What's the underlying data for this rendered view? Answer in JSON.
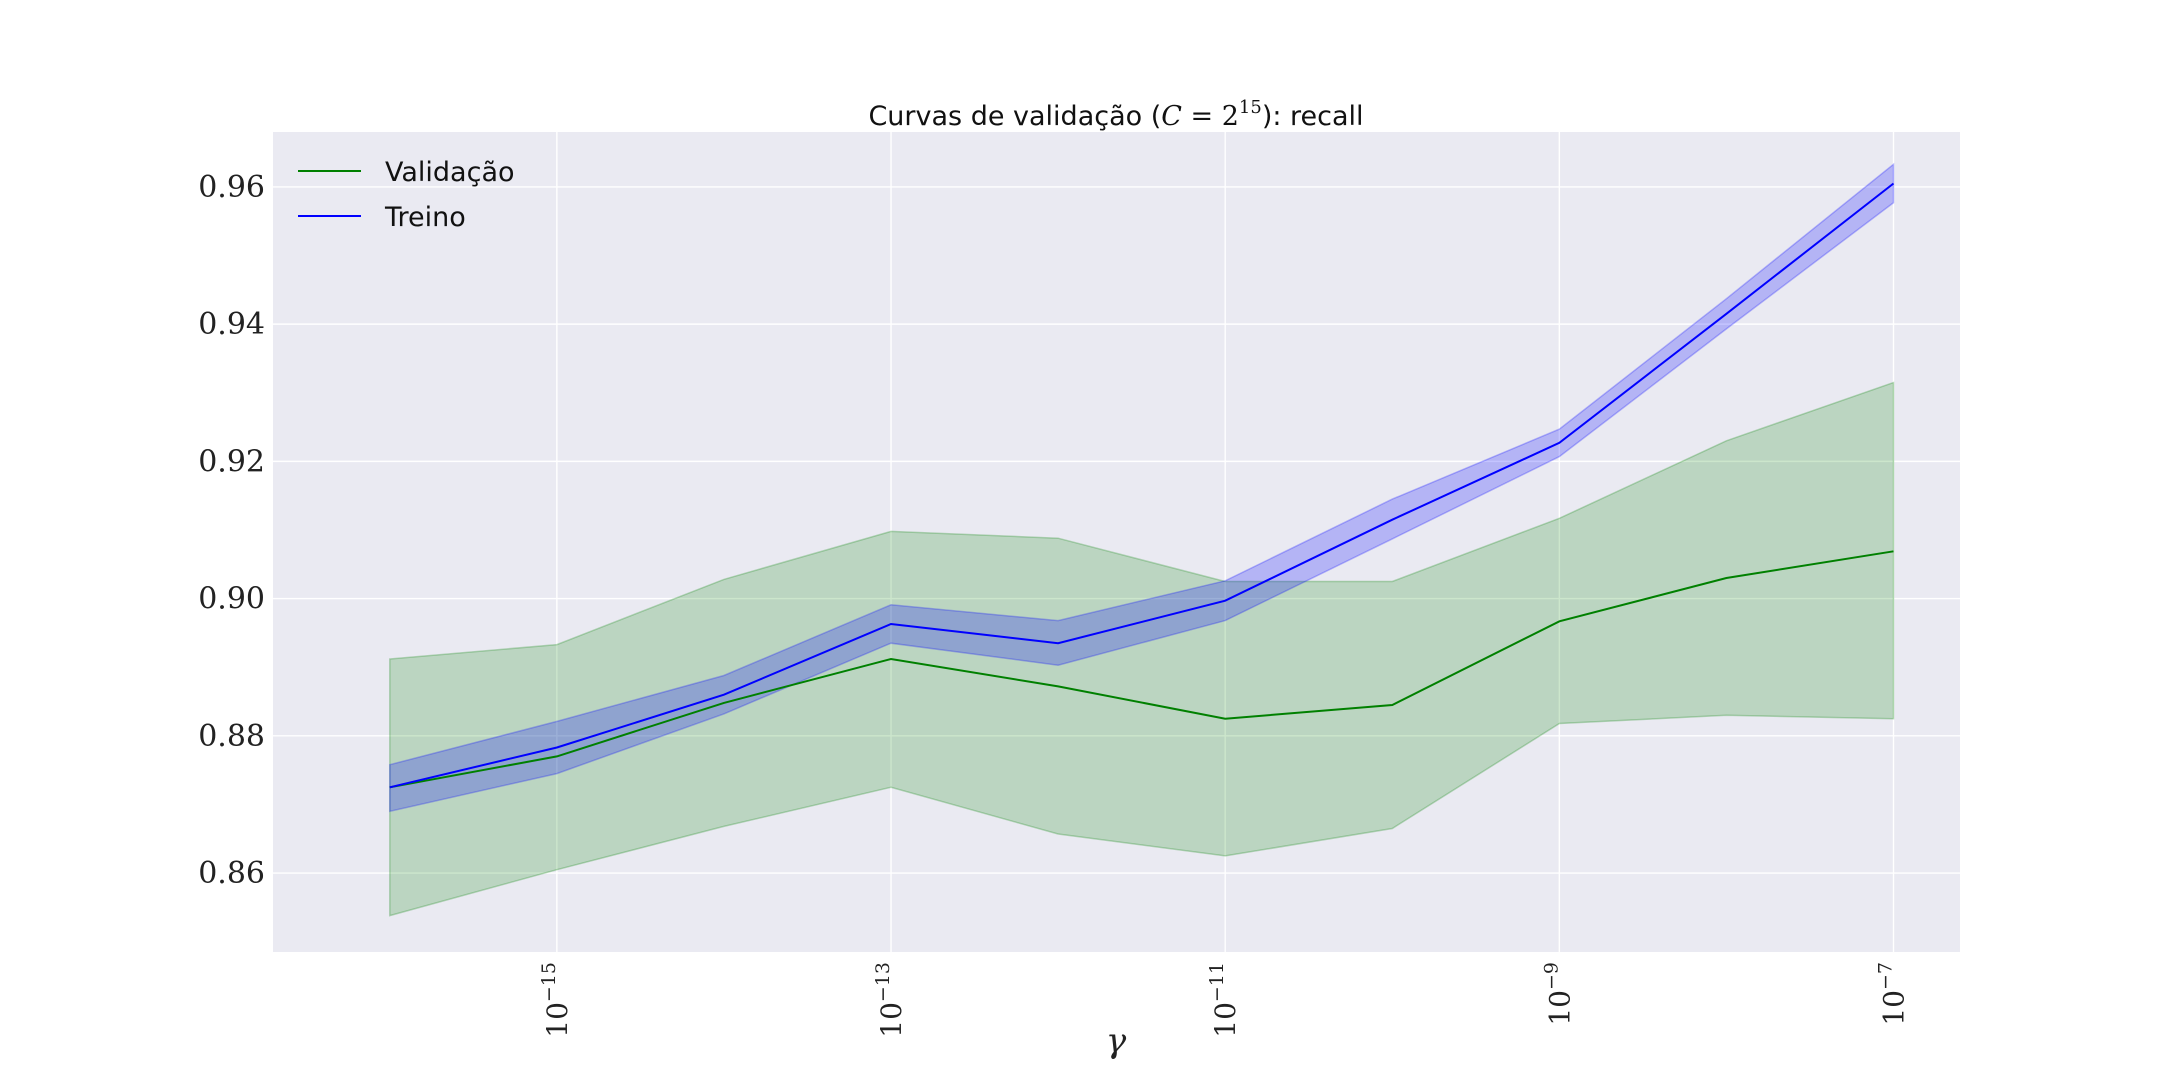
{
  "chart_data": {
    "type": "line",
    "title": {
      "prefix": "Curvas de validação (",
      "math_var": "C",
      "math_eq": " = 2",
      "math_exp": "15",
      "suffix": "): recall"
    },
    "xlabel": "γ",
    "ylabel": "",
    "x_scale": "log",
    "xlim": [
      2e-17,
      2.5e-07
    ],
    "ylim": [
      0.8485,
      0.968
    ],
    "x_ticks": [
      {
        "value": 1e-15,
        "base": "10",
        "exp": "−15"
      },
      {
        "value": 1e-13,
        "base": "10",
        "exp": "−13"
      },
      {
        "value": 1e-11,
        "base": "10",
        "exp": "−11"
      },
      {
        "value": 1e-09,
        "base": "10",
        "exp": "−9"
      },
      {
        "value": 1e-07,
        "base": "10",
        "exp": "−7"
      }
    ],
    "y_ticks": [
      {
        "value": 0.86,
        "label": "0.86"
      },
      {
        "value": 0.88,
        "label": "0.88"
      },
      {
        "value": 0.9,
        "label": "0.90"
      },
      {
        "value": 0.92,
        "label": "0.92"
      },
      {
        "value": 0.94,
        "label": "0.94"
      },
      {
        "value": 0.96,
        "label": "0.96"
      }
    ],
    "grid": true,
    "legend": "top-left",
    "x": [
      1e-16,
      1e-15,
      1e-14,
      1e-13,
      1e-12,
      1e-11,
      1e-10,
      1e-09,
      1e-08,
      1e-07
    ],
    "series": [
      {
        "name": "Validação",
        "color": "#008000",
        "band_color": "#008000",
        "values": [
          0.8725,
          0.877,
          0.8848,
          0.8912,
          0.8872,
          0.8825,
          0.8845,
          0.8967,
          0.903,
          0.9069
        ],
        "lower": [
          0.8538,
          0.8605,
          0.8668,
          0.8725,
          0.8657,
          0.8625,
          0.8665,
          0.8818,
          0.883,
          0.8825
        ],
        "upper": [
          0.8912,
          0.8933,
          0.9028,
          0.9098,
          0.9088,
          0.9025,
          0.9025,
          0.9117,
          0.923,
          0.9315
        ]
      },
      {
        "name": "Treino",
        "color": "#0000ff",
        "band_color": "#0000ff",
        "values": [
          0.8725,
          0.8783,
          0.886,
          0.8963,
          0.8935,
          0.8997,
          0.9115,
          0.9227,
          0.9415,
          0.9605
        ],
        "lower": [
          0.869,
          0.8745,
          0.8832,
          0.8935,
          0.8903,
          0.8968,
          0.9087,
          0.9207,
          0.9393,
          0.9577
        ],
        "upper": [
          0.8758,
          0.8821,
          0.8888,
          0.8991,
          0.8968,
          0.9026,
          0.9145,
          0.9247,
          0.9437,
          0.9633
        ]
      }
    ]
  }
}
